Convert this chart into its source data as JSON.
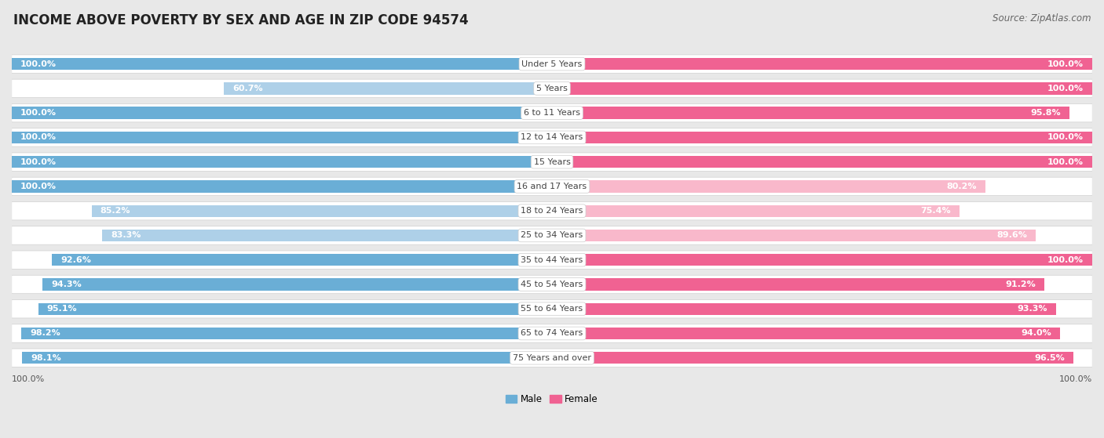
{
  "title": "INCOME ABOVE POVERTY BY SEX AND AGE IN ZIP CODE 94574",
  "source": "Source: ZipAtlas.com",
  "categories": [
    "Under 5 Years",
    "5 Years",
    "6 to 11 Years",
    "12 to 14 Years",
    "15 Years",
    "16 and 17 Years",
    "18 to 24 Years",
    "25 to 34 Years",
    "35 to 44 Years",
    "45 to 54 Years",
    "55 to 64 Years",
    "65 to 74 Years",
    "75 Years and over"
  ],
  "male_values": [
    100.0,
    60.7,
    100.0,
    100.0,
    100.0,
    100.0,
    85.2,
    83.3,
    92.6,
    94.3,
    95.1,
    98.2,
    98.1
  ],
  "female_values": [
    100.0,
    100.0,
    95.8,
    100.0,
    100.0,
    80.2,
    75.4,
    89.6,
    100.0,
    91.2,
    93.3,
    94.0,
    96.5
  ],
  "male_color": "#6aaed6",
  "male_color_light": "#aed0e8",
  "female_color": "#f06292",
  "female_color_light": "#f9b8cb",
  "male_label": "Male",
  "female_label": "Female",
  "background_color": "#e8e8e8",
  "row_bg_color": "#f2f2f2",
  "title_fontsize": 12,
  "source_fontsize": 8.5,
  "label_fontsize": 8,
  "value_fontsize": 8,
  "tick_fontsize": 8
}
